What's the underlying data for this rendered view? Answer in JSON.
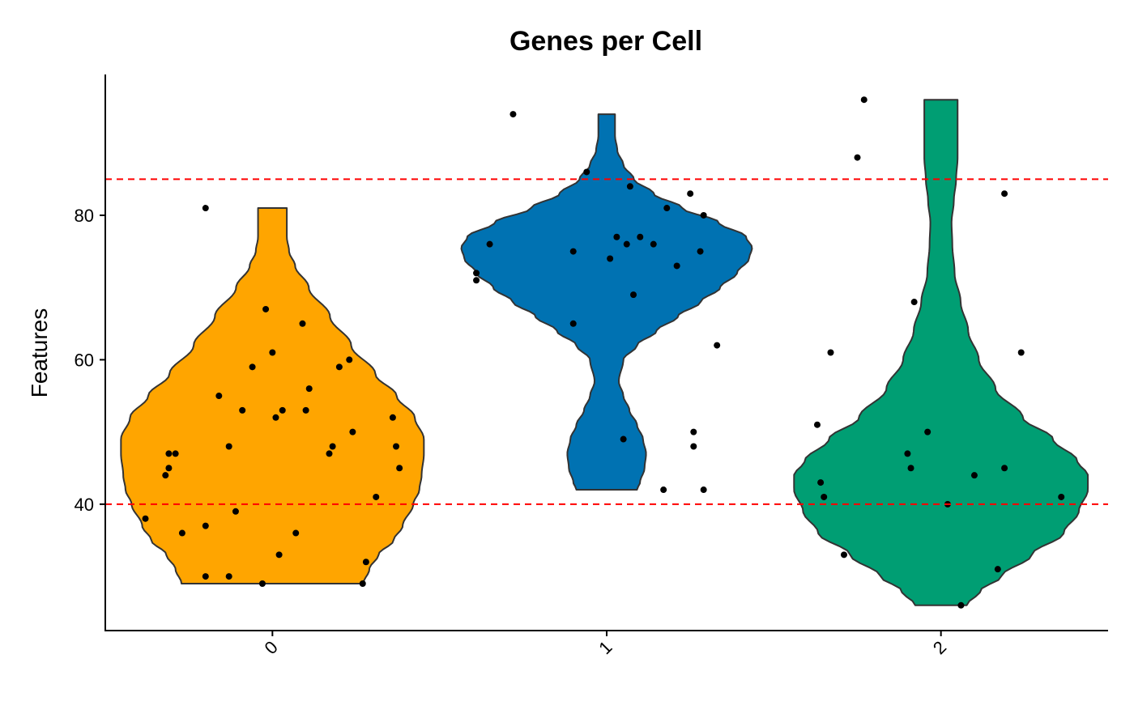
{
  "chart_data": {
    "type": "violin",
    "title": "Genes per Cell",
    "xlabel": "",
    "ylabel": "Features",
    "categories": [
      "0",
      "1",
      "2"
    ],
    "colors": [
      "#FFA500",
      "#0072B2",
      "#009E73"
    ],
    "outline_color": "#333333",
    "ylim": [
      22.5,
      99.5
    ],
    "yticks": [
      40,
      60,
      80
    ],
    "ytick_labels": [
      "40",
      "60",
      "80"
    ],
    "reference_lines": [
      {
        "y": 40,
        "color": "#FF0000",
        "style": "dashed"
      },
      {
        "y": 85,
        "color": "#FF0000",
        "style": "dashed"
      }
    ],
    "grid": false,
    "legend": "none",
    "groups": [
      {
        "category": "0",
        "range": [
          29,
          81
        ],
        "density": [
          [
            29,
            0.6
          ],
          [
            31,
            0.64
          ],
          [
            33,
            0.7
          ],
          [
            35,
            0.8
          ],
          [
            37,
            0.86
          ],
          [
            40,
            0.93
          ],
          [
            42,
            0.97
          ],
          [
            44,
            0.985
          ],
          [
            47,
            1.0
          ],
          [
            49,
            1.0
          ],
          [
            52,
            0.94
          ],
          [
            55,
            0.82
          ],
          [
            58,
            0.68
          ],
          [
            62,
            0.52
          ],
          [
            66,
            0.38
          ],
          [
            70,
            0.24
          ],
          [
            73,
            0.15
          ],
          [
            75,
            0.11
          ],
          [
            77,
            0.095
          ],
          [
            79,
            0.095
          ],
          [
            81,
            0.095
          ]
        ],
        "points": [
          {
            "x": -0.38,
            "y": 38
          },
          {
            "x": -0.32,
            "y": 44
          },
          {
            "x": -0.31,
            "y": 45
          },
          {
            "x": -0.31,
            "y": 47
          },
          {
            "x": -0.29,
            "y": 47
          },
          {
            "x": -0.27,
            "y": 36
          },
          {
            "x": -0.2,
            "y": 81
          },
          {
            "x": -0.2,
            "y": 37
          },
          {
            "x": -0.2,
            "y": 30
          },
          {
            "x": -0.16,
            "y": 55
          },
          {
            "x": -0.13,
            "y": 30
          },
          {
            "x": -0.13,
            "y": 48
          },
          {
            "x": -0.11,
            "y": 39
          },
          {
            "x": -0.09,
            "y": 53
          },
          {
            "x": -0.06,
            "y": 59
          },
          {
            "x": -0.03,
            "y": 29
          },
          {
            "x": -0.02,
            "y": 67
          },
          {
            "x": 0.0,
            "y": 61
          },
          {
            "x": 0.01,
            "y": 52
          },
          {
            "x": 0.02,
            "y": 33
          },
          {
            "x": 0.03,
            "y": 53
          },
          {
            "x": 0.07,
            "y": 36
          },
          {
            "x": 0.09,
            "y": 65
          },
          {
            "x": 0.1,
            "y": 53
          },
          {
            "x": 0.11,
            "y": 56
          },
          {
            "x": 0.17,
            "y": 47
          },
          {
            "x": 0.18,
            "y": 48
          },
          {
            "x": 0.2,
            "y": 59
          },
          {
            "x": 0.23,
            "y": 60
          },
          {
            "x": 0.24,
            "y": 50
          },
          {
            "x": 0.27,
            "y": 29
          },
          {
            "x": 0.28,
            "y": 32
          },
          {
            "x": 0.31,
            "y": 41
          },
          {
            "x": 0.36,
            "y": 52
          },
          {
            "x": 0.37,
            "y": 48
          },
          {
            "x": 0.38,
            "y": 45
          }
        ]
      },
      {
        "category": "1",
        "range": [
          42,
          94
        ],
        "density": [
          [
            42,
            0.2
          ],
          [
            43,
            0.22
          ],
          [
            45,
            0.25
          ],
          [
            47,
            0.26
          ],
          [
            49,
            0.24
          ],
          [
            51,
            0.2
          ],
          [
            53,
            0.15
          ],
          [
            55,
            0.11
          ],
          [
            57,
            0.08
          ],
          [
            60,
            0.11
          ],
          [
            62,
            0.2
          ],
          [
            64,
            0.33
          ],
          [
            66,
            0.47
          ],
          [
            68,
            0.62
          ],
          [
            70,
            0.75
          ],
          [
            72,
            0.86
          ],
          [
            74,
            0.94
          ],
          [
            75.5,
            0.96
          ],
          [
            77,
            0.92
          ],
          [
            79,
            0.74
          ],
          [
            81,
            0.5
          ],
          [
            83,
            0.31
          ],
          [
            85,
            0.18
          ],
          [
            87,
            0.11
          ],
          [
            89,
            0.07
          ],
          [
            91,
            0.055
          ],
          [
            93,
            0.055
          ],
          [
            94,
            0.055
          ]
        ],
        "points": [
          {
            "x": -0.39,
            "y": 72
          },
          {
            "x": -0.39,
            "y": 71
          },
          {
            "x": -0.35,
            "y": 76
          },
          {
            "x": -0.28,
            "y": 94
          },
          {
            "x": -0.1,
            "y": 75
          },
          {
            "x": -0.1,
            "y": 65
          },
          {
            "x": -0.06,
            "y": 86
          },
          {
            "x": 0.01,
            "y": 74
          },
          {
            "x": 0.03,
            "y": 77
          },
          {
            "x": 0.05,
            "y": 49
          },
          {
            "x": 0.06,
            "y": 76
          },
          {
            "x": 0.07,
            "y": 84
          },
          {
            "x": 0.08,
            "y": 69
          },
          {
            "x": 0.1,
            "y": 77
          },
          {
            "x": 0.14,
            "y": 76
          },
          {
            "x": 0.17,
            "y": 42
          },
          {
            "x": 0.18,
            "y": 81
          },
          {
            "x": 0.21,
            "y": 73
          },
          {
            "x": 0.25,
            "y": 83
          },
          {
            "x": 0.26,
            "y": 50
          },
          {
            "x": 0.26,
            "y": 48
          },
          {
            "x": 0.28,
            "y": 75
          },
          {
            "x": 0.29,
            "y": 42
          },
          {
            "x": 0.29,
            "y": 80
          },
          {
            "x": 0.33,
            "y": 62
          }
        ]
      },
      {
        "category": "2",
        "range": [
          26,
          96
        ],
        "density": [
          [
            26,
            0.17
          ],
          [
            28,
            0.26
          ],
          [
            30,
            0.4
          ],
          [
            33,
            0.6
          ],
          [
            36,
            0.81
          ],
          [
            39,
            0.91
          ],
          [
            42,
            0.97
          ],
          [
            44,
            0.97
          ],
          [
            46,
            0.9
          ],
          [
            49,
            0.74
          ],
          [
            52,
            0.54
          ],
          [
            56,
            0.36
          ],
          [
            60,
            0.25
          ],
          [
            64,
            0.18
          ],
          [
            68,
            0.13
          ],
          [
            72,
            0.09
          ],
          [
            76,
            0.075
          ],
          [
            79,
            0.07
          ],
          [
            82,
            0.085
          ],
          [
            85,
            0.1
          ],
          [
            88,
            0.11
          ],
          [
            91,
            0.11
          ],
          [
            94,
            0.11
          ],
          [
            96,
            0.11
          ]
        ],
        "points": [
          {
            "x": -0.37,
            "y": 51
          },
          {
            "x": -0.36,
            "y": 43
          },
          {
            "x": -0.35,
            "y": 41
          },
          {
            "x": -0.33,
            "y": 61
          },
          {
            "x": -0.29,
            "y": 33
          },
          {
            "x": -0.25,
            "y": 88
          },
          {
            "x": -0.23,
            "y": 96
          },
          {
            "x": -0.1,
            "y": 47
          },
          {
            "x": -0.09,
            "y": 45
          },
          {
            "x": -0.08,
            "y": 68
          },
          {
            "x": -0.04,
            "y": 50
          },
          {
            "x": 0.02,
            "y": 40
          },
          {
            "x": 0.06,
            "y": 26
          },
          {
            "x": 0.1,
            "y": 44
          },
          {
            "x": 0.17,
            "y": 31
          },
          {
            "x": 0.19,
            "y": 83
          },
          {
            "x": 0.19,
            "y": 45
          },
          {
            "x": 0.24,
            "y": 61
          },
          {
            "x": 0.36,
            "y": 41
          }
        ]
      }
    ]
  }
}
